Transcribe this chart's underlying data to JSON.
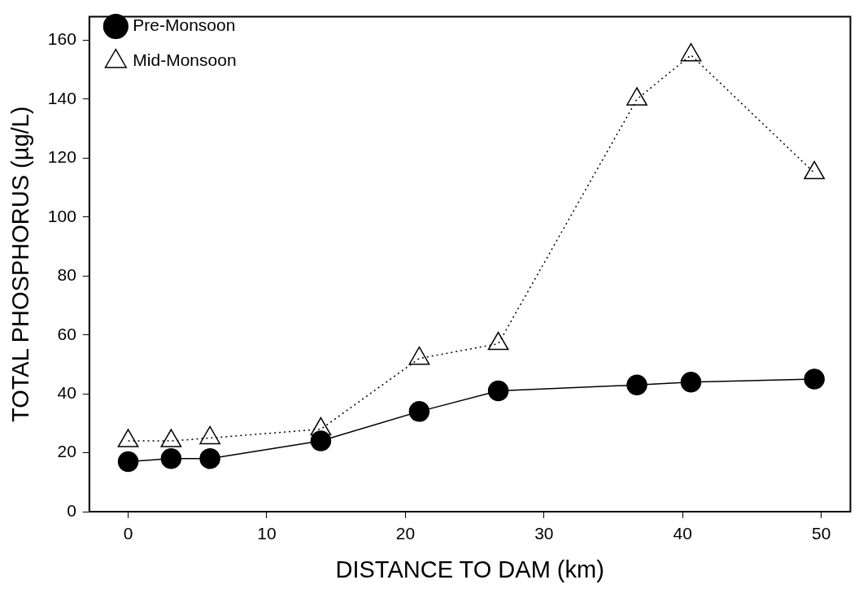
{
  "chart_data": {
    "type": "line",
    "xlabel": "DISTANCE TO DAM (km)",
    "ylabel": "TOTAL PHOSPHORUS (µg/L)",
    "xlim": [
      -2.8,
      52.1
    ],
    "xticks": [
      0,
      10,
      20,
      30,
      40,
      50
    ],
    "ylim": [
      0,
      168
    ],
    "yticks": [
      0,
      20,
      40,
      60,
      80,
      100,
      120,
      140,
      160
    ],
    "grid": false,
    "legend": "top left",
    "series": [
      {
        "name": "Pre-Monsoon",
        "color": "#000000",
        "marker": "circle",
        "line_style": "solid",
        "x": [
          0.0,
          3.1,
          5.9,
          13.9,
          21.0,
          26.7,
          36.7,
          40.6,
          49.5
        ],
        "values": [
          17,
          18,
          18,
          24,
          34,
          41,
          43,
          44,
          45
        ]
      },
      {
        "name": "Mid-Monsoon",
        "color": "#000000",
        "marker": "triangle",
        "line_style": "dotted",
        "x": [
          0.0,
          3.1,
          5.9,
          13.9,
          21.0,
          26.7,
          36.7,
          40.6,
          49.5
        ],
        "values": [
          24,
          24,
          25,
          28,
          52,
          57,
          140,
          155,
          115
        ]
      }
    ]
  }
}
